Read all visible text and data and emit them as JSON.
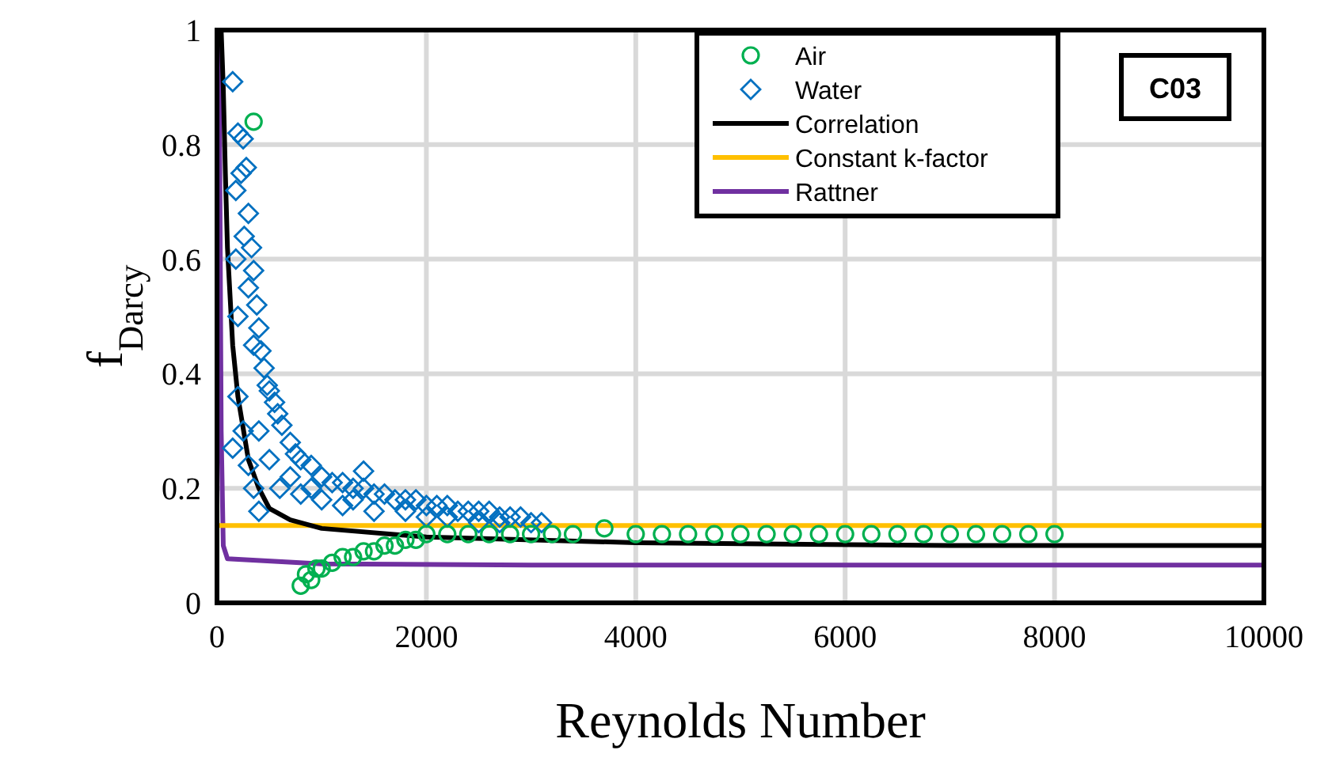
{
  "chart_data": {
    "type": "scatter",
    "xlabel": "Reynolds Number",
    "ylabel": "f$_{Darcy}$",
    "xlim": [
      0,
      10000
    ],
    "xticks": [
      0,
      2000,
      4000,
      6000,
      8000,
      10000
    ],
    "ylim": [
      0,
      1
    ],
    "yticks": [
      0,
      0.2,
      0.4,
      0.6,
      0.8,
      1
    ],
    "grid": true,
    "legend": "top right",
    "annotations": [
      "C03"
    ],
    "series": [
      {
        "name": "Air",
        "type": "scatter",
        "marker": "circle",
        "color": "#00b050",
        "x": [
          350,
          800,
          850,
          900,
          950,
          1000,
          1100,
          1200,
          1300,
          1400,
          1500,
          1600,
          1700,
          1800,
          1900,
          2000,
          2200,
          2400,
          2600,
          2800,
          3000,
          3200,
          3400,
          3700,
          4000,
          4250,
          4500,
          4750,
          5000,
          5250,
          5500,
          5750,
          6000,
          6250,
          6500,
          6750,
          7000,
          7250,
          7500,
          7750,
          8000
        ],
        "values": [
          0.84,
          0.03,
          0.05,
          0.04,
          0.06,
          0.06,
          0.07,
          0.08,
          0.08,
          0.09,
          0.09,
          0.1,
          0.1,
          0.11,
          0.11,
          0.12,
          0.12,
          0.12,
          0.12,
          0.12,
          0.12,
          0.12,
          0.12,
          0.13,
          0.12,
          0.12,
          0.12,
          0.12,
          0.12,
          0.12,
          0.12,
          0.12,
          0.12,
          0.12,
          0.12,
          0.12,
          0.12,
          0.12,
          0.12,
          0.12,
          0.12
        ]
      },
      {
        "name": "Water",
        "type": "scatter",
        "marker": "diamond",
        "color": "#0070c0",
        "x": [
          150,
          200,
          230,
          250,
          180,
          280,
          300,
          260,
          330,
          350,
          300,
          380,
          400,
          350,
          420,
          450,
          480,
          500,
          550,
          580,
          620,
          200,
          150,
          250,
          300,
          700,
          750,
          800,
          900,
          1000,
          1100,
          1200,
          1300,
          1400,
          1500,
          1600,
          1700,
          1800,
          1900,
          2000,
          2100,
          2200,
          2300,
          2400,
          2500,
          2600,
          2700,
          2800,
          2900,
          3000,
          3100,
          600,
          800,
          1000,
          1200,
          1500,
          2000,
          2500,
          500,
          400,
          200,
          180,
          700,
          900,
          1400,
          1300,
          1800,
          2200,
          2700,
          350,
          400
        ],
        "values": [
          0.91,
          0.82,
          0.75,
          0.81,
          0.72,
          0.76,
          0.68,
          0.64,
          0.62,
          0.58,
          0.55,
          0.52,
          0.48,
          0.45,
          0.44,
          0.41,
          0.38,
          0.37,
          0.35,
          0.33,
          0.31,
          0.36,
          0.27,
          0.3,
          0.24,
          0.28,
          0.26,
          0.25,
          0.24,
          0.22,
          0.21,
          0.21,
          0.2,
          0.2,
          0.19,
          0.19,
          0.18,
          0.18,
          0.18,
          0.17,
          0.17,
          0.17,
          0.16,
          0.16,
          0.16,
          0.16,
          0.15,
          0.15,
          0.15,
          0.14,
          0.14,
          0.2,
          0.19,
          0.18,
          0.17,
          0.16,
          0.15,
          0.14,
          0.25,
          0.3,
          0.5,
          0.6,
          0.22,
          0.2,
          0.23,
          0.18,
          0.16,
          0.15,
          0.14,
          0.2,
          0.16
        ]
      },
      {
        "name": "Correlation",
        "type": "line",
        "marker": "none",
        "color": "#000000",
        "x": [
          40,
          60,
          80,
          100,
          150,
          200,
          300,
          400,
          500,
          700,
          1000,
          2000,
          4000,
          7000,
          10000
        ],
        "values": [
          1,
          0.9,
          0.75,
          0.62,
          0.45,
          0.36,
          0.25,
          0.2,
          0.165,
          0.145,
          0.13,
          0.115,
          0.105,
          0.1,
          0.1
        ]
      },
      {
        "name": "Constant k-factor",
        "type": "line",
        "marker": "none",
        "color": "#ffc000",
        "x": [
          0,
          10000
        ],
        "values": [
          0.135,
          0.135
        ]
      },
      {
        "name": "Rattner",
        "type": "line",
        "marker": "none",
        "color": "#7030a0",
        "x": [
          20,
          40,
          60,
          100,
          1000,
          3000,
          10000
        ],
        "values": [
          1,
          0.3,
          0.1,
          0.077,
          0.068,
          0.066,
          0.066
        ]
      }
    ]
  }
}
